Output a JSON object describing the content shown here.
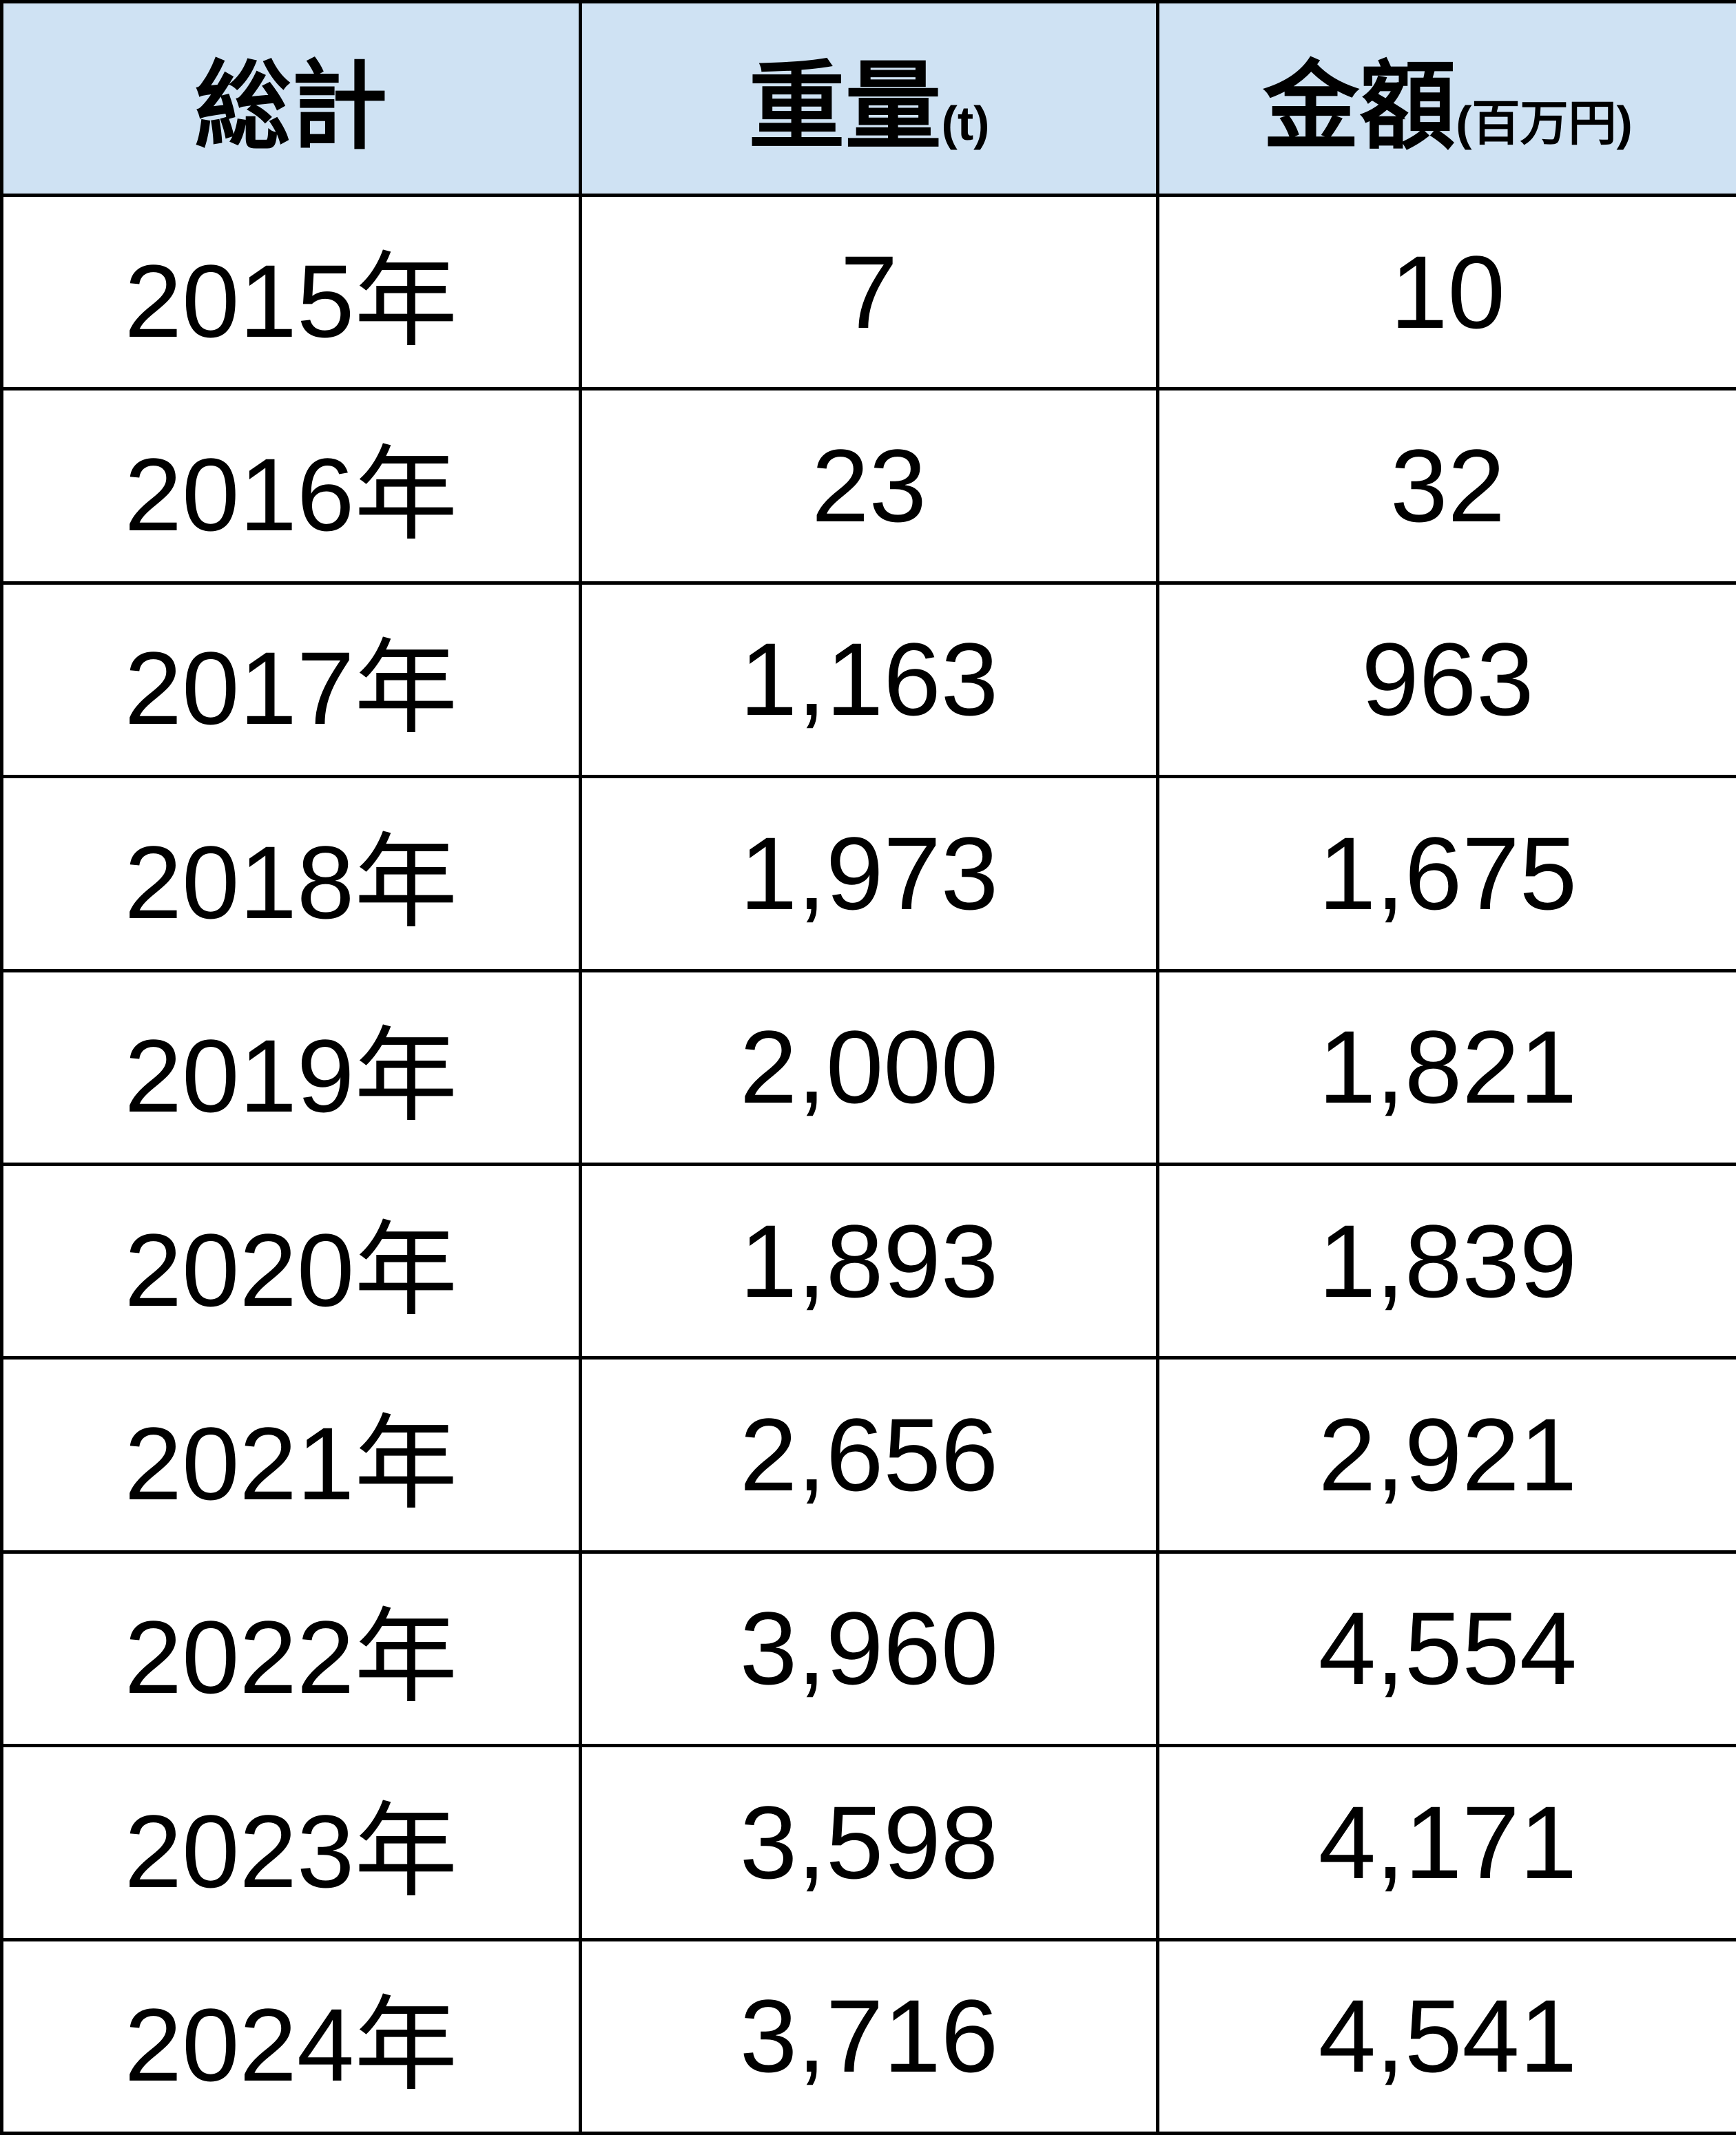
{
  "header": {
    "col1": "総計",
    "col2": "重量",
    "col2_unit": "(t)",
    "col3": "金額",
    "col3_unit": "(百万円)",
    "background_color": "#cfe2f3"
  },
  "rows": [
    {
      "year": "2015年",
      "weight": "7",
      "amount": "10"
    },
    {
      "year": "2016年",
      "weight": "23",
      "amount": "32"
    },
    {
      "year": "2017年",
      "weight": "1,163",
      "amount": "963"
    },
    {
      "year": "2018年",
      "weight": "1,973",
      "amount": "1,675"
    },
    {
      "year": "2019年",
      "weight": "2,000",
      "amount": "1,821"
    },
    {
      "year": "2020年",
      "weight": "1,893",
      "amount": "1,839"
    },
    {
      "year": "2021年",
      "weight": "2,656",
      "amount": "2,921"
    },
    {
      "year": "2022年",
      "weight": "3,960",
      "amount": "4,554"
    },
    {
      "year": "2023年",
      "weight": "3,598",
      "amount": "4,171"
    },
    {
      "year": "2024年",
      "weight": "3,716",
      "amount": "4,541"
    }
  ]
}
